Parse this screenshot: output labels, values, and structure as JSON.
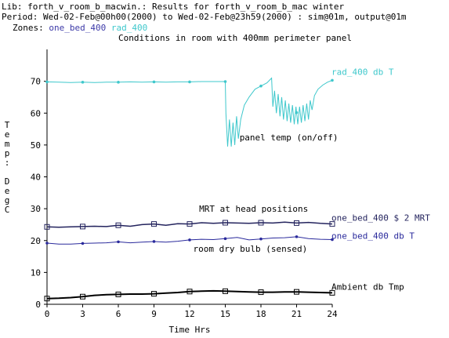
{
  "header": {
    "line1": "Lib: forth_v_room_b_macwin.: Results for forth_v_room_b_mac winter",
    "line2": "Period: Wed-02-Feb@00h00(2000) to Wed-02-Feb@23h59(2000) : sim@01m, output@01m",
    "zones_label": "Zones:",
    "zones": [
      "one_bed_400",
      "rad_400"
    ]
  },
  "chart_data": {
    "type": "line",
    "title": "Conditions in room with 400mm perimeter panel",
    "xlabel": "Time Hrs",
    "ylabel": "Temp: DegC",
    "ylabel_chars": [
      "T",
      "e",
      "m",
      "p",
      ":",
      " ",
      "D",
      "e",
      "g",
      "C"
    ],
    "xlim": [
      0,
      24
    ],
    "ylim": [
      0,
      80
    ],
    "xticks": [
      0,
      3,
      6,
      9,
      12,
      15,
      18,
      21,
      24
    ],
    "yticks": [
      0,
      10,
      20,
      30,
      40,
      50,
      60,
      70
    ],
    "grid": false,
    "series": [
      {
        "name": "rad_400 db T",
        "color": "#3fc8cc",
        "x": [
          0,
          1,
          2,
          3,
          4,
          5,
          6,
          7,
          8,
          9,
          10,
          11,
          12,
          13,
          14,
          15,
          15.05,
          15.2,
          15.35,
          15.5,
          15.65,
          15.8,
          15.95,
          16.1,
          16.3,
          16.6,
          17,
          17.5,
          18,
          18.5,
          18.9,
          19.0,
          19.15,
          19.3,
          19.45,
          19.6,
          19.75,
          19.9,
          20.05,
          20.2,
          20.35,
          20.5,
          20.65,
          20.8,
          20.95,
          21.1,
          21.25,
          21.4,
          21.55,
          21.7,
          21.85,
          22.0,
          22.15,
          22.3,
          22.5,
          22.8,
          23.2,
          23.6,
          24
        ],
        "y": [
          69.8,
          69.7,
          69.6,
          69.7,
          69.6,
          69.7,
          69.7,
          69.8,
          69.7,
          69.8,
          69.7,
          69.8,
          69.8,
          69.9,
          69.9,
          69.9,
          60,
          49.5,
          58,
          49.5,
          57,
          50,
          59,
          52,
          58,
          62.5,
          65,
          67.5,
          68.5,
          69.5,
          71,
          62,
          67,
          60,
          66,
          59,
          65,
          58,
          64,
          57.5,
          63,
          57,
          62.5,
          56.5,
          62,
          56.5,
          62,
          57,
          62.5,
          57.5,
          63,
          58,
          64,
          61,
          65.5,
          67.5,
          68.8,
          69.7,
          70.3
        ],
        "markers_x": [
          0,
          3,
          6,
          9,
          12,
          15,
          18,
          21,
          24
        ]
      },
      {
        "name": "one_bed_400 $ 2 MRT",
        "color": "#24245e",
        "x": [
          0,
          1,
          2,
          3,
          4,
          5,
          6,
          7,
          8,
          9,
          10,
          11,
          12,
          13,
          14,
          15,
          16,
          17,
          18,
          19,
          20,
          21,
          22,
          23,
          24
        ],
        "y": [
          24.3,
          24.2,
          24.3,
          24.4,
          24.5,
          24.4,
          24.8,
          24.5,
          25,
          25.2,
          24.8,
          25.3,
          25.2,
          25.6,
          25.4,
          25.6,
          25.5,
          25.4,
          25.6,
          25.5,
          25.8,
          25.5,
          25.7,
          25.4,
          25.2
        ],
        "markers_x": [
          0,
          3,
          6,
          9,
          12,
          15,
          18,
          21,
          24
        ]
      },
      {
        "name": "one_bed_400 db T",
        "color": "#2a2a9c",
        "x": [
          0,
          1,
          2,
          3,
          4,
          5,
          6,
          7,
          8,
          9,
          10,
          11,
          12,
          13,
          14,
          15,
          16,
          17,
          18,
          19,
          20,
          21,
          22,
          23,
          24
        ],
        "y": [
          19.2,
          18.9,
          18.9,
          19.1,
          19.2,
          19.3,
          19.6,
          19.3,
          19.5,
          19.7,
          19.5,
          19.8,
          20.2,
          20.4,
          20.3,
          20.6,
          21,
          20.2,
          20.5,
          20.8,
          20.9,
          21.2,
          20.6,
          20.4,
          20.3
        ],
        "markers_x": [
          0,
          3,
          6,
          9,
          12,
          15,
          18,
          21,
          24
        ]
      },
      {
        "name": "Ambient db Tmp",
        "color": "#000000",
        "x": [
          0,
          1,
          2,
          3,
          4,
          5,
          6,
          7,
          8,
          9,
          10,
          11,
          12,
          13,
          14,
          15,
          16,
          17,
          18,
          19,
          20,
          21,
          22,
          23,
          24
        ],
        "y": [
          1.8,
          1.9,
          2.1,
          2.4,
          2.8,
          3.0,
          3.1,
          3.2,
          3.2,
          3.3,
          3.5,
          3.7,
          4.0,
          4.1,
          4.2,
          4.1,
          4.0,
          3.9,
          3.8,
          3.8,
          3.9,
          3.9,
          3.8,
          3.7,
          3.6
        ],
        "markers_x": [
          0,
          3,
          6,
          9,
          12,
          15,
          18,
          21,
          24
        ]
      }
    ],
    "annotations": [
      {
        "text": "panel temp (on/off)",
        "x": 16.2,
        "y": 51.5
      },
      {
        "text": "MRT at head positions",
        "x": 12.8,
        "y": 29
      },
      {
        "text": "room dry bulb (sensed)",
        "x": 12.3,
        "y": 16.5
      }
    ]
  }
}
